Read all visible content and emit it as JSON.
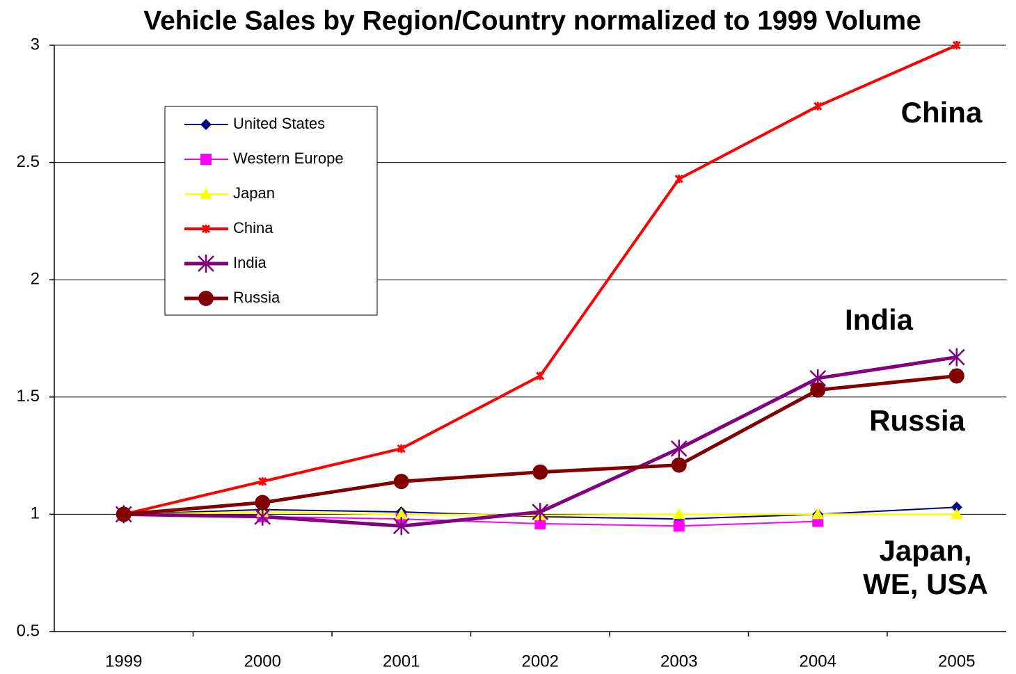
{
  "chart_data": {
    "type": "line",
    "title": "Vehicle Sales by Region/Country normalized to 1999 Volume",
    "categories": [
      "1999",
      "2000",
      "2001",
      "2002",
      "2003",
      "2004",
      "2005"
    ],
    "series": [
      {
        "name": "United States",
        "color": "#000080",
        "marker": "diamond",
        "values": [
          1,
          1.02,
          1.01,
          0.99,
          0.98,
          1.0,
          1.03
        ]
      },
      {
        "name": "Western Europe",
        "color": "#ff00ff",
        "marker": "square",
        "values": [
          1,
          0.99,
          0.98,
          0.96,
          0.95,
          0.97,
          null
        ]
      },
      {
        "name": "Japan",
        "color": "#ffff00",
        "marker": "triangle",
        "values": [
          1,
          1.01,
          1.0,
          0.995,
          1.0,
          1.0,
          1.0
        ]
      },
      {
        "name": "China",
        "color": "#ff0000",
        "marker": "star",
        "values": [
          1,
          1.14,
          1.28,
          1.59,
          2.43,
          2.74,
          3.0
        ]
      },
      {
        "name": "India",
        "color": "#800080",
        "marker": "asterisk",
        "values": [
          1,
          0.99,
          0.95,
          1.01,
          1.28,
          1.58,
          1.67
        ]
      },
      {
        "name": "Russia",
        "color": "#800000",
        "marker": "circle",
        "values": [
          1,
          1.05,
          1.14,
          1.18,
          1.21,
          1.53,
          1.59
        ]
      }
    ],
    "ylim": [
      0.5,
      3
    ],
    "yticks": [
      0.5,
      1,
      1.5,
      2,
      2.5,
      3
    ],
    "grid": true,
    "legend": "upper-left",
    "annotations": [
      "China",
      "India",
      "Russia",
      "Japan,",
      "WE, USA"
    ]
  }
}
